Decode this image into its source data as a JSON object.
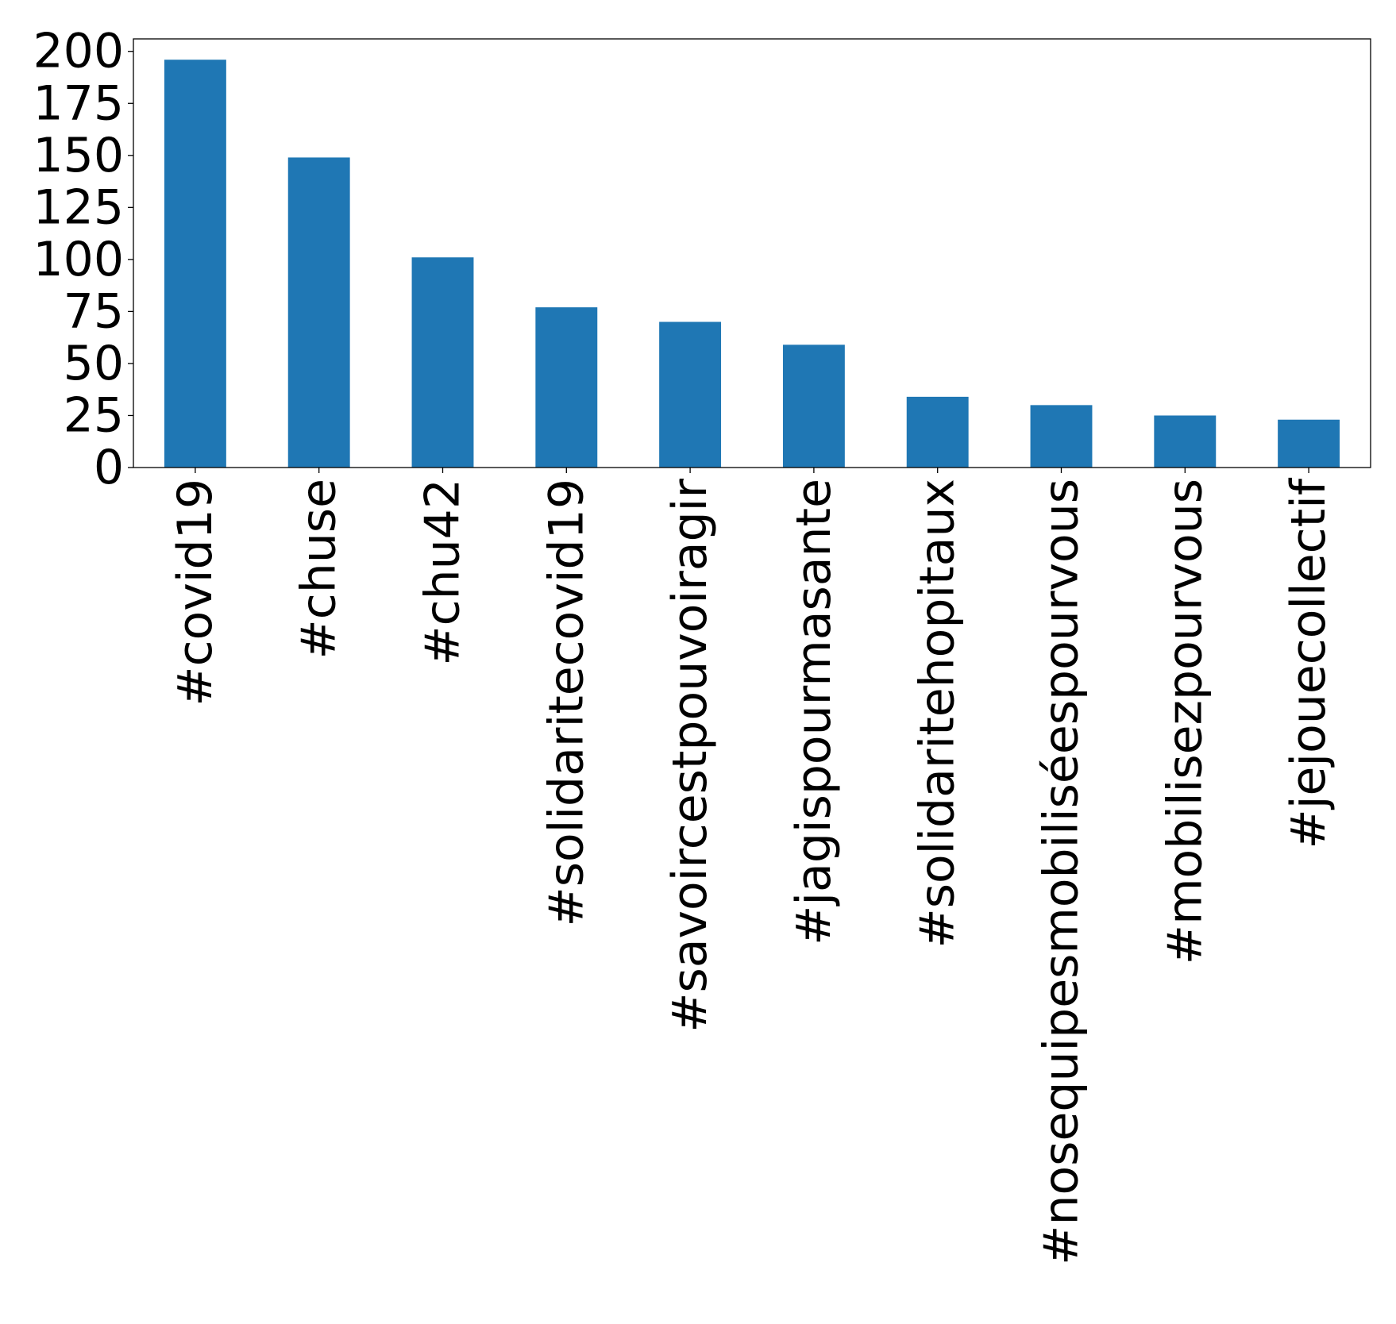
{
  "chart_data": {
    "type": "bar",
    "title": "",
    "xlabel": "",
    "ylabel": "",
    "categories": [
      "#covid19",
      "#chuse",
      "#chu42",
      "#solidaritecovid19",
      "#savoircestpouvoiragir",
      "#jagispourmasante",
      "#solidaritehopitaux",
      "#nosequipesmobiliséespourvous",
      "#mobilisezpourvous",
      "#jejouecollectif"
    ],
    "values": [
      196,
      149,
      101,
      77,
      70,
      59,
      34,
      30,
      25,
      23
    ],
    "yticks": [
      0,
      25,
      50,
      75,
      100,
      125,
      150,
      175,
      200
    ],
    "ylim": [
      0,
      206
    ],
    "grid": false,
    "legend": "none",
    "bar_color": "#1f77b4"
  }
}
